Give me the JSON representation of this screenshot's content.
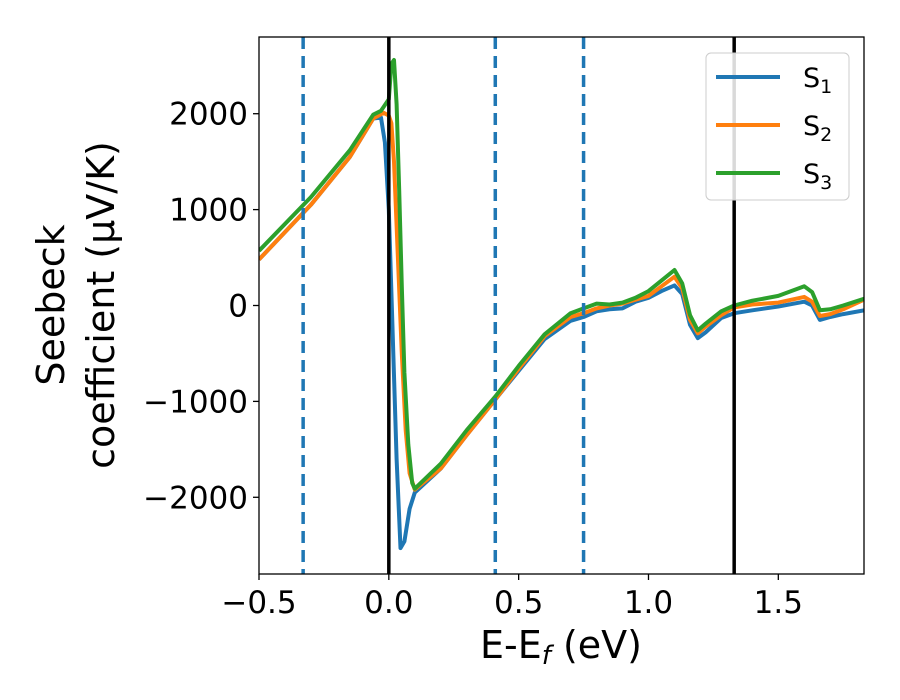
{
  "chart_data": {
    "type": "line",
    "xlabel": "E-E",
    "xlabel_sub": "f",
    "xlabel_unit": " (eV)",
    "ylabel_line1": "Seebeck",
    "ylabel_line2": "coefficient  (μV/K)",
    "xlim": [
      -0.5,
      1.83
    ],
    "ylim": [
      -2800,
      2800
    ],
    "xticks": [
      -0.5,
      0.0,
      0.5,
      1.0,
      1.5
    ],
    "xtick_labels": [
      "−0.5",
      "0.0",
      "0.5",
      "1.0",
      "1.5"
    ],
    "yticks": [
      2000,
      1000,
      0,
      -1000,
      -2000
    ],
    "ytick_labels": [
      "2000",
      "1000",
      "0",
      "−1000",
      "−2000"
    ],
    "grid": false,
    "legend_position": "top-right",
    "vlines_solid": [
      0.0,
      1.33
    ],
    "vlines_dashed": [
      -0.33,
      0.41,
      0.75
    ],
    "series": [
      {
        "name": "S",
        "sub": "1",
        "color": "#1f77b4",
        "points": [
          [
            -0.5,
            480
          ],
          [
            -0.3,
            1050
          ],
          [
            -0.15,
            1550
          ],
          [
            -0.06,
            1950
          ],
          [
            -0.03,
            1960
          ],
          [
            -0.015,
            1700
          ],
          [
            0.0,
            1000
          ],
          [
            0.015,
            -300
          ],
          [
            0.03,
            -1600
          ],
          [
            0.045,
            -2530
          ],
          [
            0.06,
            -2460
          ],
          [
            0.08,
            -2120
          ],
          [
            0.1,
            -1950
          ],
          [
            0.2,
            -1700
          ],
          [
            0.3,
            -1350
          ],
          [
            0.41,
            -980
          ],
          [
            0.5,
            -680
          ],
          [
            0.6,
            -350
          ],
          [
            0.7,
            -160
          ],
          [
            0.75,
            -120
          ],
          [
            0.8,
            -60
          ],
          [
            0.85,
            -40
          ],
          [
            0.9,
            -30
          ],
          [
            0.95,
            40
          ],
          [
            1.0,
            80
          ],
          [
            1.05,
            150
          ],
          [
            1.1,
            210
          ],
          [
            1.13,
            120
          ],
          [
            1.16,
            -200
          ],
          [
            1.19,
            -340
          ],
          [
            1.22,
            -280
          ],
          [
            1.28,
            -130
          ],
          [
            1.33,
            -80
          ],
          [
            1.4,
            -50
          ],
          [
            1.5,
            -10
          ],
          [
            1.6,
            40
          ],
          [
            1.63,
            0
          ],
          [
            1.66,
            -150
          ],
          [
            1.7,
            -120
          ],
          [
            1.75,
            -90
          ],
          [
            1.83,
            -50
          ]
        ]
      },
      {
        "name": "S",
        "sub": "2",
        "color": "#ff7f0e",
        "points": [
          [
            -0.5,
            480
          ],
          [
            -0.3,
            1050
          ],
          [
            -0.15,
            1550
          ],
          [
            -0.06,
            1950
          ],
          [
            -0.02,
            2010
          ],
          [
            0.0,
            1980
          ],
          [
            0.01,
            1900
          ],
          [
            0.02,
            1500
          ],
          [
            0.035,
            500
          ],
          [
            0.05,
            -500
          ],
          [
            0.065,
            -1300
          ],
          [
            0.08,
            -1750
          ],
          [
            0.1,
            -1920
          ],
          [
            0.2,
            -1700
          ],
          [
            0.3,
            -1350
          ],
          [
            0.41,
            -980
          ],
          [
            0.5,
            -660
          ],
          [
            0.6,
            -320
          ],
          [
            0.7,
            -120
          ],
          [
            0.75,
            -80
          ],
          [
            0.8,
            -30
          ],
          [
            0.85,
            0
          ],
          [
            0.9,
            20
          ],
          [
            0.95,
            60
          ],
          [
            1.0,
            100
          ],
          [
            1.05,
            200
          ],
          [
            1.1,
            300
          ],
          [
            1.13,
            180
          ],
          [
            1.16,
            -150
          ],
          [
            1.19,
            -290
          ],
          [
            1.22,
            -220
          ],
          [
            1.28,
            -100
          ],
          [
            1.33,
            -20
          ],
          [
            1.4,
            10
          ],
          [
            1.5,
            30
          ],
          [
            1.6,
            90
          ],
          [
            1.63,
            40
          ],
          [
            1.66,
            -110
          ],
          [
            1.7,
            -90
          ],
          [
            1.75,
            -40
          ],
          [
            1.83,
            60
          ]
        ]
      },
      {
        "name": "S",
        "sub": "3",
        "color": "#2ca02c",
        "points": [
          [
            -0.5,
            570
          ],
          [
            -0.3,
            1130
          ],
          [
            -0.15,
            1620
          ],
          [
            -0.06,
            1990
          ],
          [
            -0.03,
            2030
          ],
          [
            0.0,
            2150
          ],
          [
            0.01,
            2520
          ],
          [
            0.02,
            2560
          ],
          [
            0.03,
            2100
          ],
          [
            0.04,
            1200
          ],
          [
            0.05,
            200
          ],
          [
            0.06,
            -700
          ],
          [
            0.075,
            -1450
          ],
          [
            0.09,
            -1850
          ],
          [
            0.1,
            -1910
          ],
          [
            0.2,
            -1650
          ],
          [
            0.3,
            -1300
          ],
          [
            0.41,
            -950
          ],
          [
            0.5,
            -630
          ],
          [
            0.6,
            -300
          ],
          [
            0.7,
            -80
          ],
          [
            0.75,
            -30
          ],
          [
            0.8,
            20
          ],
          [
            0.85,
            10
          ],
          [
            0.9,
            30
          ],
          [
            0.95,
            80
          ],
          [
            1.0,
            150
          ],
          [
            1.05,
            260
          ],
          [
            1.1,
            370
          ],
          [
            1.13,
            230
          ],
          [
            1.16,
            -100
          ],
          [
            1.19,
            -260
          ],
          [
            1.22,
            -190
          ],
          [
            1.28,
            -60
          ],
          [
            1.33,
            0
          ],
          [
            1.4,
            50
          ],
          [
            1.5,
            100
          ],
          [
            1.6,
            200
          ],
          [
            1.63,
            140
          ],
          [
            1.66,
            -50
          ],
          [
            1.7,
            -40
          ],
          [
            1.75,
            0
          ],
          [
            1.83,
            70
          ]
        ]
      }
    ]
  }
}
